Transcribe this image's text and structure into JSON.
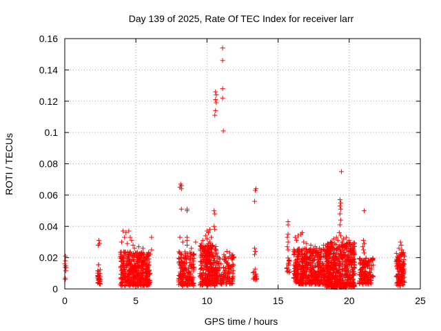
{
  "colors": {
    "marker": "#ff0000",
    "grid": "#a0a0a0",
    "axis": "#000000",
    "background": "#ffffff"
  },
  "chart_data": {
    "type": "scatter",
    "title": "Day 139 of 2025, Rate Of TEC Index for receiver larr",
    "xlabel": "GPS time / hours",
    "ylabel": "ROTI / TECUs",
    "xlim": [
      0,
      25
    ],
    "ylim": [
      0,
      0.16
    ],
    "xticks": [
      0,
      5,
      10,
      15,
      20,
      25
    ],
    "xtick_labels": [
      "0",
      "5",
      "10",
      "15",
      "20",
      "25"
    ],
    "yticks": [
      0,
      0.02,
      0.04,
      0.06,
      0.08,
      0.1,
      0.12,
      0.14,
      0.16
    ],
    "ytick_labels": [
      "0",
      "0.02",
      "0.04",
      "0.06",
      "0.08",
      "0.1",
      "0.12",
      "0.14",
      "0.16"
    ],
    "grid": true,
    "marker": "+",
    "series_name": "ROTI",
    "clusters": [
      {
        "x_range": [
          0.0,
          0.1
        ],
        "y_range": [
          0.006,
          0.021
        ],
        "count": 6
      },
      {
        "x_range": [
          2.3,
          2.5
        ],
        "y_range": [
          0.003,
          0.016
        ],
        "count": 30
      },
      {
        "x_range": [
          3.9,
          6.0
        ],
        "y_range": [
          0.002,
          0.024
        ],
        "count": 420
      },
      {
        "x_range": [
          8.0,
          9.1
        ],
        "y_range": [
          0.002,
          0.024
        ],
        "count": 170
      },
      {
        "x_range": [
          9.5,
          10.7
        ],
        "y_range": [
          0.002,
          0.028
        ],
        "count": 300
      },
      {
        "x_range": [
          10.7,
          11.9
        ],
        "y_range": [
          0.003,
          0.022
        ],
        "count": 130
      },
      {
        "x_range": [
          13.2,
          13.5
        ],
        "y_range": [
          0.006,
          0.014
        ],
        "count": 14
      },
      {
        "x_range": [
          15.6,
          15.8
        ],
        "y_range": [
          0.01,
          0.02
        ],
        "count": 14
      },
      {
        "x_range": [
          16.1,
          18.6
        ],
        "y_range": [
          0.003,
          0.026
        ],
        "count": 520
      },
      {
        "x_range": [
          18.4,
          20.4
        ],
        "y_range": [
          0.001,
          0.03
        ],
        "count": 520
      },
      {
        "x_range": [
          20.7,
          21.7
        ],
        "y_range": [
          0.003,
          0.02
        ],
        "count": 150
      },
      {
        "x_range": [
          23.3,
          23.9
        ],
        "y_range": [
          0.002,
          0.024
        ],
        "count": 120
      }
    ],
    "points": [
      {
        "x": 0.0,
        "y": 0.016
      },
      {
        "x": 0.05,
        "y": 0.021
      },
      {
        "x": 0.05,
        "y": 0.018
      },
      {
        "x": 2.4,
        "y": 0.031
      },
      {
        "x": 2.45,
        "y": 0.029
      },
      {
        "x": 2.35,
        "y": 0.028
      },
      {
        "x": 4.1,
        "y": 0.037
      },
      {
        "x": 4.3,
        "y": 0.036
      },
      {
        "x": 4.5,
        "y": 0.037
      },
      {
        "x": 4.2,
        "y": 0.033
      },
      {
        "x": 4.6,
        "y": 0.033
      },
      {
        "x": 4.0,
        "y": 0.03
      },
      {
        "x": 4.4,
        "y": 0.029
      },
      {
        "x": 4.8,
        "y": 0.028
      },
      {
        "x": 5.2,
        "y": 0.027
      },
      {
        "x": 5.5,
        "y": 0.026
      },
      {
        "x": 6.1,
        "y": 0.033
      },
      {
        "x": 6.1,
        "y": 0.025
      },
      {
        "x": 4.7,
        "y": 0.031
      },
      {
        "x": 4.9,
        "y": 0.026
      },
      {
        "x": 8.1,
        "y": 0.065
      },
      {
        "x": 8.2,
        "y": 0.066
      },
      {
        "x": 8.2,
        "y": 0.064
      },
      {
        "x": 8.15,
        "y": 0.067
      },
      {
        "x": 8.2,
        "y": 0.051
      },
      {
        "x": 8.6,
        "y": 0.051
      },
      {
        "x": 8.6,
        "y": 0.05
      },
      {
        "x": 8.1,
        "y": 0.033
      },
      {
        "x": 8.6,
        "y": 0.033
      },
      {
        "x": 8.6,
        "y": 0.031
      },
      {
        "x": 8.3,
        "y": 0.03
      },
      {
        "x": 8.6,
        "y": 0.028
      },
      {
        "x": 9.2,
        "y": 0.03
      },
      {
        "x": 8.9,
        "y": 0.026
      },
      {
        "x": 10.0,
        "y": 0.037
      },
      {
        "x": 10.1,
        "y": 0.036
      },
      {
        "x": 10.2,
        "y": 0.038
      },
      {
        "x": 9.9,
        "y": 0.034
      },
      {
        "x": 10.0,
        "y": 0.032
      },
      {
        "x": 10.3,
        "y": 0.033
      },
      {
        "x": 9.7,
        "y": 0.031
      },
      {
        "x": 10.2,
        "y": 0.03
      },
      {
        "x": 9.6,
        "y": 0.029
      },
      {
        "x": 10.1,
        "y": 0.029
      },
      {
        "x": 10.5,
        "y": 0.05
      },
      {
        "x": 10.55,
        "y": 0.048
      },
      {
        "x": 10.5,
        "y": 0.04
      },
      {
        "x": 10.55,
        "y": 0.038
      },
      {
        "x": 10.6,
        "y": 0.126
      },
      {
        "x": 10.65,
        "y": 0.124
      },
      {
        "x": 10.6,
        "y": 0.121
      },
      {
        "x": 10.65,
        "y": 0.119
      },
      {
        "x": 10.6,
        "y": 0.114
      },
      {
        "x": 10.55,
        "y": 0.111
      },
      {
        "x": 11.1,
        "y": 0.154
      },
      {
        "x": 11.1,
        "y": 0.146
      },
      {
        "x": 11.1,
        "y": 0.128
      },
      {
        "x": 11.1,
        "y": 0.122
      },
      {
        "x": 11.15,
        "y": 0.101
      },
      {
        "x": 11.4,
        "y": 0.024
      },
      {
        "x": 11.6,
        "y": 0.023
      },
      {
        "x": 13.4,
        "y": 0.063
      },
      {
        "x": 13.45,
        "y": 0.064
      },
      {
        "x": 13.35,
        "y": 0.056
      },
      {
        "x": 13.35,
        "y": 0.026
      },
      {
        "x": 13.4,
        "y": 0.024
      },
      {
        "x": 13.35,
        "y": 0.022
      },
      {
        "x": 15.7,
        "y": 0.043
      },
      {
        "x": 15.7,
        "y": 0.041
      },
      {
        "x": 15.7,
        "y": 0.035
      },
      {
        "x": 15.65,
        "y": 0.033
      },
      {
        "x": 15.7,
        "y": 0.03
      },
      {
        "x": 15.65,
        "y": 0.027
      },
      {
        "x": 15.7,
        "y": 0.025
      },
      {
        "x": 16.2,
        "y": 0.033
      },
      {
        "x": 16.4,
        "y": 0.034
      },
      {
        "x": 16.6,
        "y": 0.035
      },
      {
        "x": 16.3,
        "y": 0.031
      },
      {
        "x": 16.8,
        "y": 0.03
      },
      {
        "x": 17.0,
        "y": 0.029
      },
      {
        "x": 16.7,
        "y": 0.036
      },
      {
        "x": 17.3,
        "y": 0.028
      },
      {
        "x": 17.6,
        "y": 0.027
      },
      {
        "x": 17.9,
        "y": 0.026
      },
      {
        "x": 18.2,
        "y": 0.028
      },
      {
        "x": 18.7,
        "y": 0.03
      },
      {
        "x": 18.9,
        "y": 0.032
      },
      {
        "x": 19.1,
        "y": 0.033
      },
      {
        "x": 19.3,
        "y": 0.036
      },
      {
        "x": 19.4,
        "y": 0.034
      },
      {
        "x": 19.2,
        "y": 0.031
      },
      {
        "x": 19.6,
        "y": 0.032
      },
      {
        "x": 19.8,
        "y": 0.033
      },
      {
        "x": 20.0,
        "y": 0.031
      },
      {
        "x": 19.5,
        "y": 0.03
      },
      {
        "x": 19.35,
        "y": 0.057
      },
      {
        "x": 19.4,
        "y": 0.055
      },
      {
        "x": 19.35,
        "y": 0.053
      },
      {
        "x": 19.4,
        "y": 0.051
      },
      {
        "x": 19.35,
        "y": 0.048
      },
      {
        "x": 19.4,
        "y": 0.044
      },
      {
        "x": 19.35,
        "y": 0.041
      },
      {
        "x": 19.45,
        "y": 0.075
      },
      {
        "x": 21.0,
        "y": 0.031
      },
      {
        "x": 21.05,
        "y": 0.029
      },
      {
        "x": 20.95,
        "y": 0.027
      },
      {
        "x": 21.0,
        "y": 0.025
      },
      {
        "x": 21.05,
        "y": 0.023
      },
      {
        "x": 21.05,
        "y": 0.05
      },
      {
        "x": 23.6,
        "y": 0.03
      },
      {
        "x": 23.65,
        "y": 0.028
      },
      {
        "x": 23.5,
        "y": 0.026
      },
      {
        "x": 23.7,
        "y": 0.025
      }
    ]
  }
}
